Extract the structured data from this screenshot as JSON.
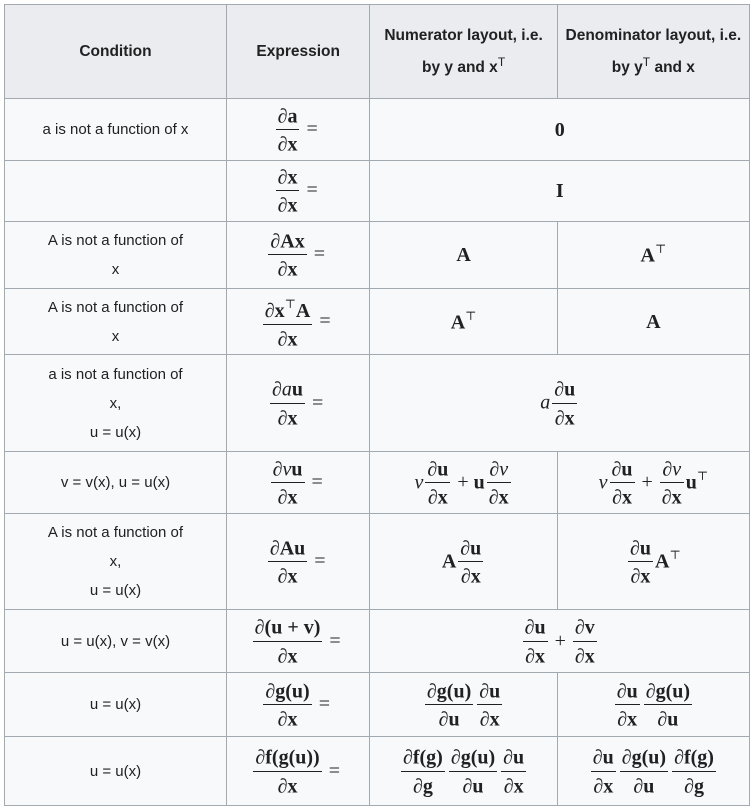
{
  "header": {
    "condition": "Condition",
    "expression": "Expression",
    "numerator": "Numerator layout, i.e. by y and x",
    "numerator_sup": "T",
    "denominator": "Denominator layout, i.e. by y",
    "denominator_sup": "T",
    "denominator_tail": " and x"
  },
  "rows": [
    {
      "condition": [
        "a is not a function of x"
      ],
      "expression": [
        {
          "n": "∂a",
          "d": "∂x"
        },
        {
          "op": "="
        }
      ],
      "merged": true,
      "numerator": [
        "0"
      ]
    },
    {
      "condition": [],
      "expression": [
        {
          "n": "∂x",
          "d": "∂x"
        },
        {
          "op": "="
        }
      ],
      "merged": true,
      "numerator": [
        "I"
      ]
    },
    {
      "condition": [
        "A is not a function of",
        "x"
      ],
      "expression": [
        {
          "n": "∂Ax",
          "d": "∂x"
        },
        {
          "op": "="
        }
      ],
      "numerator": [
        "A"
      ],
      "denominator": [
        "A",
        {
          "sup": "⊤"
        }
      ]
    },
    {
      "condition": [
        "A is not a function of",
        "x"
      ],
      "expression": [
        {
          "n": [
            "∂x",
            {
              "sup": "⊤"
            },
            "A"
          ],
          "d": "∂x"
        },
        {
          "op": "="
        }
      ],
      "numerator": [
        "A",
        {
          "sup": "⊤"
        }
      ],
      "denominator": [
        "A"
      ]
    },
    {
      "condition": [
        "a is not a function of",
        "x,",
        "u = u(x)"
      ],
      "expression": [
        {
          "n": [
            "∂",
            {
              "it": "a"
            },
            "u"
          ],
          "d": "∂x"
        },
        {
          "op": "="
        }
      ],
      "merged": true,
      "numerator": [
        {
          "it": "a"
        },
        {
          "n": "∂u",
          "d": "∂x"
        }
      ]
    },
    {
      "condition": [
        "v = v(x), u = u(x)"
      ],
      "expression": [
        {
          "n": [
            "∂",
            {
              "it": "v"
            },
            "u"
          ],
          "d": "∂x"
        },
        {
          "op": "="
        }
      ],
      "numerator": [
        {
          "it": "v"
        },
        {
          "n": "∂u",
          "d": "∂x"
        },
        {
          "op": "+"
        },
        "u",
        {
          "n": [
            "∂",
            {
              "it": "v"
            }
          ],
          "d": "∂x"
        }
      ],
      "denominator": [
        {
          "it": "v"
        },
        {
          "n": "∂u",
          "d": "∂x"
        },
        {
          "op": "+"
        },
        {
          "n": [
            "∂",
            {
              "it": "v"
            }
          ],
          "d": "∂x"
        },
        "u",
        {
          "sup": "⊤"
        }
      ]
    },
    {
      "condition": [
        "A is not a function of",
        "x,",
        "u = u(x)"
      ],
      "expression": [
        {
          "n": "∂Au",
          "d": "∂x"
        },
        {
          "op": "="
        }
      ],
      "numerator": [
        "A",
        {
          "n": "∂u",
          "d": "∂x"
        }
      ],
      "denominator": [
        {
          "n": "∂u",
          "d": "∂x"
        },
        "A",
        {
          "sup": "⊤"
        }
      ]
    },
    {
      "condition": [
        "u = u(x), v = v(x)"
      ],
      "expression": [
        {
          "n": "∂(u + v)",
          "d": "∂x"
        },
        {
          "op": "="
        }
      ],
      "merged": true,
      "numerator": [
        {
          "n": "∂u",
          "d": "∂x"
        },
        {
          "op": "+"
        },
        {
          "n": "∂v",
          "d": "∂x"
        }
      ]
    },
    {
      "condition": [
        "u = u(x)"
      ],
      "expression": [
        {
          "n": "∂g(u)",
          "d": "∂x"
        },
        {
          "op": "="
        }
      ],
      "numerator": [
        {
          "n": "∂g(u)",
          "d": "∂u"
        },
        {
          "n": "∂u",
          "d": "∂x"
        }
      ],
      "denominator": [
        {
          "n": "∂u",
          "d": "∂x"
        },
        {
          "n": "∂g(u)",
          "d": "∂u"
        }
      ]
    },
    {
      "condition": [
        "u = u(x)"
      ],
      "expression": [
        {
          "n": "∂f(g(u))",
          "d": "∂x"
        },
        {
          "op": "="
        }
      ],
      "numerator": [
        {
          "n": "∂f(g)",
          "d": "∂g"
        },
        {
          "n": "∂g(u)",
          "d": "∂u"
        },
        {
          "n": "∂u",
          "d": "∂x"
        }
      ],
      "denominator": [
        {
          "n": "∂u",
          "d": "∂x"
        },
        {
          "n": "∂g(u)",
          "d": "∂u"
        },
        {
          "n": "∂f(g)",
          "d": "∂g"
        }
      ]
    }
  ]
}
